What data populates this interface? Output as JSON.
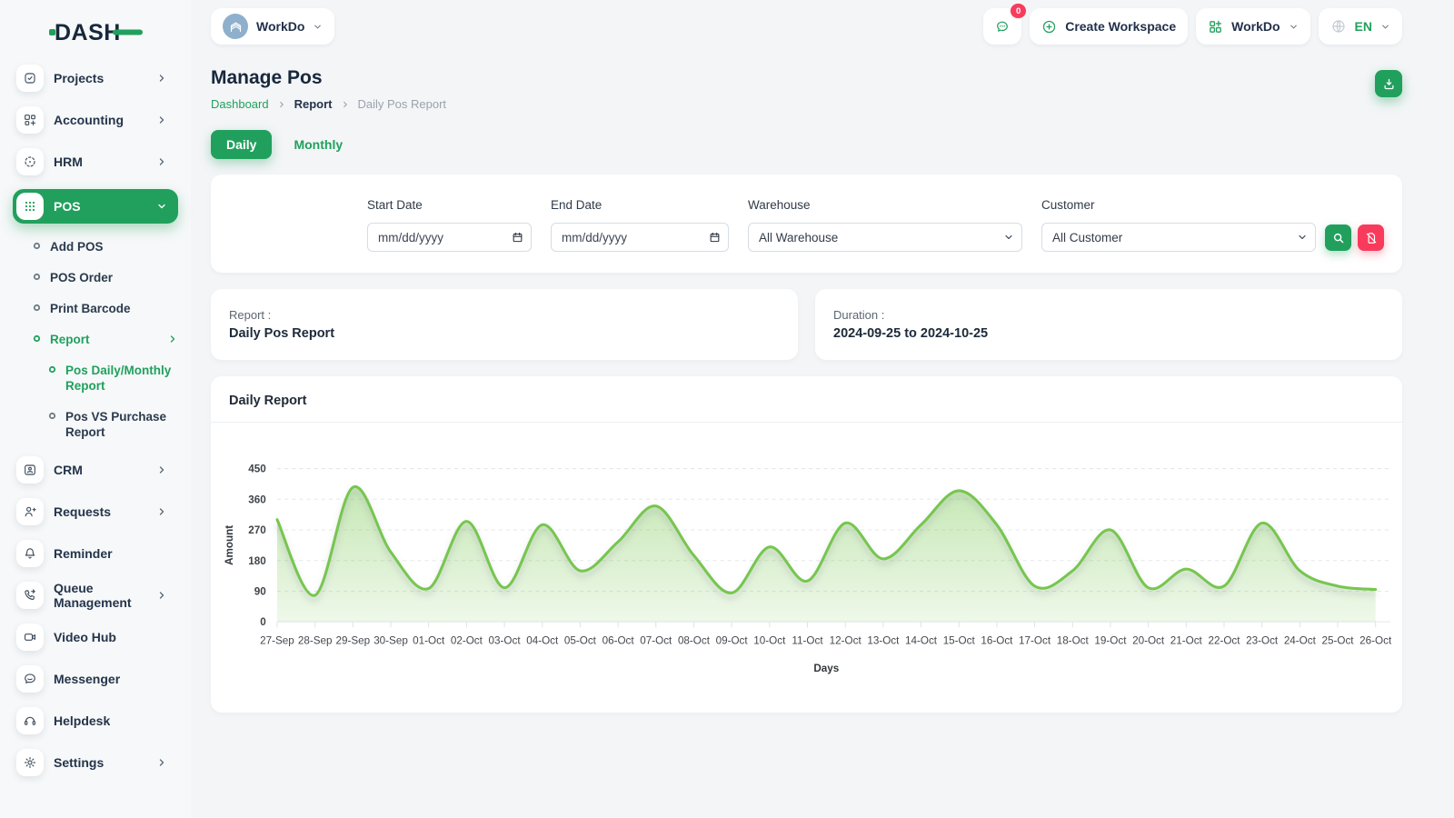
{
  "app": {
    "logo_text": "DASH",
    "colors": {
      "accent": "#21a05d",
      "danger": "#f83b5c",
      "chart_line": "#77c64f",
      "dark": "#17273c"
    }
  },
  "topbar": {
    "workspace_name": "WorkDo",
    "messages_badge": "0",
    "create_workspace_label": "Create Workspace",
    "workdo_label": "WorkDo",
    "language": "EN"
  },
  "sidebar": {
    "items": [
      {
        "label": "Projects",
        "icon": "projects",
        "chevron": "right"
      },
      {
        "label": "Accounting",
        "icon": "accounting",
        "chevron": "right"
      },
      {
        "label": "HRM",
        "icon": "hrm",
        "chevron": "right"
      },
      {
        "label": "POS",
        "icon": "pos",
        "chevron": "down",
        "active": true,
        "children": [
          {
            "label": "Add POS"
          },
          {
            "label": "POS Order"
          },
          {
            "label": "Print Barcode"
          },
          {
            "label": "Report",
            "active": true,
            "chevron": "right",
            "children": [
              {
                "label": "Pos Daily/Monthly Report",
                "active": true
              },
              {
                "label": "Pos VS Purchase Report"
              }
            ]
          }
        ]
      },
      {
        "label": "CRM",
        "icon": "crm",
        "chevron": "right"
      },
      {
        "label": "Requests",
        "icon": "requests",
        "chevron": "right"
      },
      {
        "label": "Reminder",
        "icon": "reminder"
      },
      {
        "label": "Queue Management",
        "icon": "queue",
        "chevron": "right"
      },
      {
        "label": "Video Hub",
        "icon": "video"
      },
      {
        "label": "Messenger",
        "icon": "messenger"
      },
      {
        "label": "Helpdesk",
        "icon": "helpdesk"
      },
      {
        "label": "Settings",
        "icon": "settings",
        "chevron": "right"
      }
    ]
  },
  "page": {
    "title": "Manage Pos",
    "breadcrumb": [
      "Dashboard",
      "Report",
      "Daily Pos Report"
    ],
    "tabs": [
      {
        "label": "Daily",
        "active": true
      },
      {
        "label": "Monthly",
        "active": false
      }
    ]
  },
  "filters": {
    "start_date": {
      "label": "Start Date",
      "placeholder": "mm/dd/yyyy"
    },
    "end_date": {
      "label": "End Date",
      "placeholder": "mm/dd/yyyy"
    },
    "warehouse": {
      "label": "Warehouse",
      "value": "All Warehouse"
    },
    "customer": {
      "label": "Customer",
      "value": "All Customer"
    }
  },
  "summary": {
    "report_label": "Report :",
    "report_value": "Daily Pos Report",
    "duration_label": "Duration :",
    "duration_value": "2024-09-25 to 2024-10-25"
  },
  "chart_card": {
    "title": "Daily Report"
  },
  "chart_data": {
    "type": "area",
    "title": "Daily Report",
    "xlabel": "Days",
    "ylabel": "Amount",
    "ylim": [
      0,
      450
    ],
    "yticks": [
      0,
      90,
      180,
      270,
      360,
      450
    ],
    "grid": "horizontal-dashed",
    "legend": "none",
    "line_color": "#77c64f",
    "fill": "green-gradient",
    "x": [
      "27-Sep",
      "28-Sep",
      "29-Sep",
      "30-Sep",
      "01-Oct",
      "02-Oct",
      "03-Oct",
      "04-Oct",
      "05-Oct",
      "06-Oct",
      "07-Oct",
      "08-Oct",
      "09-Oct",
      "10-Oct",
      "11-Oct",
      "12-Oct",
      "13-Oct",
      "14-Oct",
      "15-Oct",
      "16-Oct",
      "17-Oct",
      "18-Oct",
      "19-Oct",
      "20-Oct",
      "21-Oct",
      "22-Oct",
      "23-Oct",
      "24-Oct",
      "25-Oct",
      "26-Oct"
    ],
    "series": [
      {
        "name": "Amount",
        "values": [
          300,
          78,
          395,
          205,
          98,
          295,
          100,
          285,
          150,
          235,
          340,
          195,
          85,
          220,
          120,
          290,
          185,
          285,
          385,
          285,
          105,
          150,
          270,
          100,
          155,
          105,
          290,
          150,
          105,
          95
        ]
      }
    ]
  }
}
